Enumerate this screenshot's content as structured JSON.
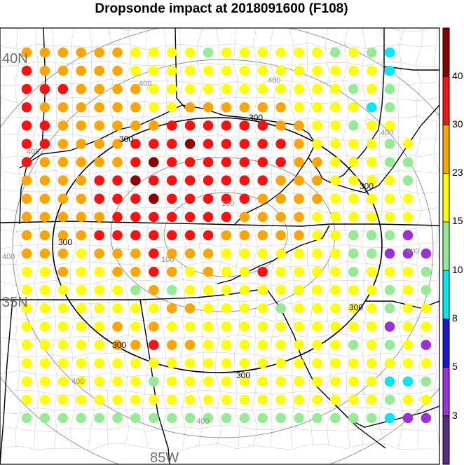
{
  "title": "Dropsonde impact at 2018091600 (F108)",
  "map": {
    "lat_labels": [
      "40N",
      "35N"
    ],
    "lon_labels": [
      "85W"
    ],
    "range_ring_labels": [
      "100",
      "100",
      "300",
      "300",
      "300",
      "300",
      "300",
      "300",
      "300",
      "400",
      "400",
      "400",
      "400",
      "400",
      "400",
      "400",
      "400"
    ],
    "colors": {
      "range_ring_inner": "#000000",
      "range_ring_outer": "#888888",
      "borders": "#000000",
      "counties": "#cccccc"
    },
    "grid": {
      "rows": 21,
      "cols": 23,
      "values": [
        [
          24,
          24,
          24,
          24,
          24,
          24,
          21,
          21,
          21,
          21,
          12,
          21,
          21,
          21,
          21,
          21,
          21,
          12,
          21,
          12,
          8,
          -1,
          -1
        ],
        [
          32,
          24,
          24,
          24,
          24,
          24,
          21,
          21,
          21,
          21,
          21,
          21,
          21,
          21,
          21,
          21,
          21,
          21,
          21,
          21,
          8,
          -1,
          -1
        ],
        [
          32,
          32,
          32,
          24,
          24,
          24,
          24,
          21,
          21,
          21,
          21,
          21,
          21,
          21,
          21,
          21,
          21,
          21,
          12,
          21,
          12,
          -1,
          -1
        ],
        [
          32,
          24,
          24,
          24,
          24,
          24,
          24,
          21,
          21,
          24,
          24,
          24,
          24,
          24,
          24,
          21,
          21,
          21,
          21,
          8,
          12,
          -1,
          -1
        ],
        [
          32,
          32,
          24,
          24,
          24,
          24,
          24,
          24,
          32,
          32,
          32,
          32,
          32,
          32,
          24,
          24,
          21,
          21,
          12,
          21,
          21,
          -1,
          -1
        ],
        [
          32,
          32,
          24,
          24,
          24,
          24,
          32,
          32,
          32,
          42,
          32,
          32,
          32,
          32,
          32,
          24,
          21,
          21,
          21,
          21,
          12,
          21,
          -1
        ],
        [
          32,
          24,
          24,
          24,
          24,
          24,
          32,
          42,
          32,
          32,
          32,
          32,
          32,
          32,
          32,
          24,
          24,
          21,
          21,
          21,
          12,
          12,
          -1
        ],
        [
          24,
          24,
          24,
          24,
          32,
          32,
          42,
          32,
          32,
          32,
          32,
          32,
          32,
          32,
          24,
          24,
          24,
          21,
          21,
          21,
          21,
          12,
          -1
        ],
        [
          24,
          24,
          24,
          24,
          32,
          32,
          32,
          42,
          32,
          32,
          32,
          32,
          32,
          24,
          24,
          24,
          24,
          21,
          21,
          21,
          21,
          21,
          -1
        ],
        [
          24,
          24,
          24,
          24,
          24,
          32,
          32,
          32,
          32,
          32,
          32,
          32,
          24,
          24,
          24,
          24,
          21,
          21,
          21,
          21,
          21,
          21,
          -1
        ],
        [
          24,
          24,
          24,
          24,
          32,
          32,
          32,
          32,
          32,
          32,
          32,
          24,
          24,
          24,
          24,
          24,
          21,
          21,
          12,
          12,
          12,
          4,
          -1
        ],
        [
          24,
          24,
          24,
          21,
          24,
          24,
          24,
          32,
          24,
          24,
          24,
          21,
          21,
          21,
          21,
          21,
          21,
          21,
          12,
          12,
          4,
          4,
          4
        ],
        [
          21,
          21,
          24,
          21,
          21,
          24,
          24,
          32,
          24,
          21,
          24,
          21,
          21,
          32,
          21,
          21,
          21,
          21,
          12,
          21,
          21,
          21,
          12
        ],
        [
          21,
          21,
          21,
          21,
          21,
          21,
          12,
          24,
          12,
          21,
          21,
          21,
          21,
          21,
          21,
          21,
          21,
          21,
          21,
          21,
          12,
          21,
          12
        ],
        [
          21,
          21,
          21,
          21,
          21,
          21,
          21,
          21,
          24,
          24,
          21,
          21,
          21,
          21,
          12,
          21,
          21,
          21,
          21,
          21,
          12,
          21,
          21
        ],
        [
          21,
          21,
          21,
          21,
          21,
          24,
          21,
          24,
          21,
          21,
          21,
          21,
          21,
          21,
          21,
          21,
          21,
          21,
          21,
          21,
          4,
          21,
          21
        ],
        [
          21,
          21,
          21,
          21,
          21,
          24,
          24,
          32,
          24,
          24,
          21,
          21,
          21,
          21,
          21,
          21,
          21,
          21,
          12,
          21,
          12,
          21,
          4
        ],
        [
          21,
          21,
          21,
          21,
          21,
          21,
          21,
          21,
          21,
          21,
          21,
          21,
          21,
          21,
          21,
          21,
          21,
          21,
          21,
          21,
          21,
          21,
          21
        ],
        [
          21,
          21,
          21,
          21,
          21,
          21,
          21,
          12,
          21,
          21,
          21,
          21,
          21,
          21,
          21,
          21,
          21,
          21,
          21,
          21,
          8,
          8,
          12
        ],
        [
          21,
          21,
          21,
          21,
          21,
          21,
          21,
          21,
          21,
          21,
          21,
          21,
          21,
          21,
          21,
          21,
          21,
          21,
          21,
          21,
          12,
          21,
          21
        ],
        [
          12,
          12,
          12,
          12,
          12,
          12,
          12,
          12,
          12,
          12,
          12,
          12,
          12,
          12,
          12,
          12,
          12,
          12,
          12,
          12,
          8,
          4,
          4
        ]
      ]
    }
  },
  "colorbar": {
    "tick_labels": [
      "40",
      "30",
      "23",
      "15",
      "10",
      "8",
      "5",
      "3"
    ],
    "bins": [
      {
        "color": "#5a2a8a"
      },
      {
        "color": "#9b30d9"
      },
      {
        "color": "#1616d6"
      },
      {
        "color": "#00e8f0"
      },
      {
        "color": "#96eb96"
      },
      {
        "color": "#ffff00"
      },
      {
        "color": "#ffa500"
      },
      {
        "color": "#ff1010"
      },
      {
        "color": "#8b0000"
      }
    ]
  }
}
